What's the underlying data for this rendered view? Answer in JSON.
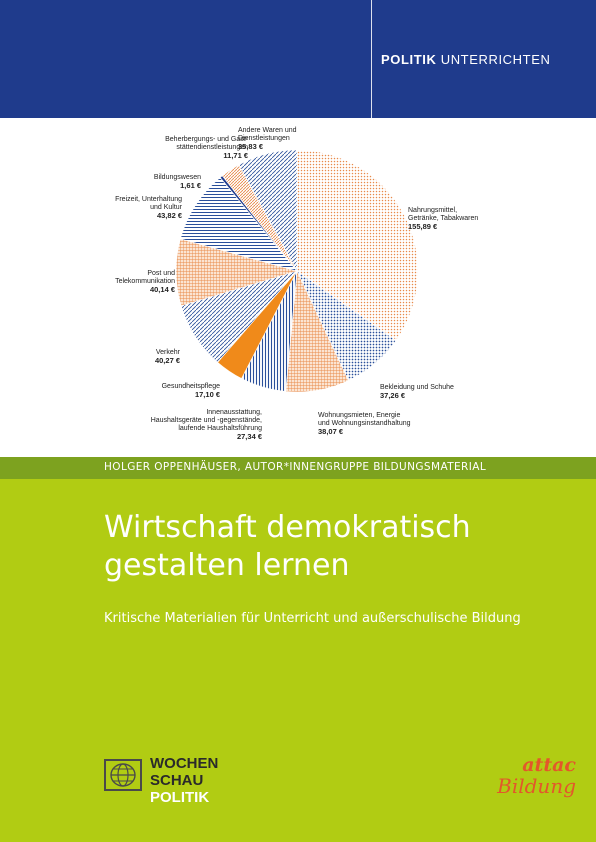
{
  "header": {
    "series_bold": "POLITIK",
    "series_rest": "UNTERRICHTEN",
    "colors": {
      "band": "#1f3b8c",
      "green_dark": "#7da21f",
      "green_main": "#b1cc13"
    }
  },
  "chart_data": {
    "type": "pie",
    "unit": "€",
    "start_angle_deg": 0,
    "direction": "clockwise",
    "slices": [
      {
        "label_lines": [
          "Nahrungsmittel,",
          "Getränke, Tabakwaren"
        ],
        "value_text": "155,89 €",
        "value": 155.89,
        "color": "#e88a4a",
        "pattern": "dots"
      },
      {
        "label_lines": [
          "Bekleidung und Schuhe"
        ],
        "value_text": "37,26 €",
        "value": 37.26,
        "color": "#2a4f9a",
        "pattern": "dots"
      },
      {
        "label_lines": [
          "Wohnungsmieten, Energie",
          "und Wohnungsinstandhaltung"
        ],
        "value_text": "38,07 €",
        "value": 38.07,
        "color": "#e88a4a",
        "pattern": "grid"
      },
      {
        "label_lines": [
          "Innenausstattung,",
          "Haushaltsgeräte und -gegenstände,",
          "laufende Haushaltsführung"
        ],
        "value_text": "27,34 €",
        "value": 27.34,
        "color": "#2a4f9a",
        "pattern": "vlines"
      },
      {
        "label_lines": [
          "Gesundheitspflege"
        ],
        "value_text": "17,10 €",
        "value": 17.1,
        "color": "#f08a1a",
        "pattern": "solid"
      },
      {
        "label_lines": [
          "Verkehr"
        ],
        "value_text": "40,27 €",
        "value": 40.27,
        "color": "#2a4f9a",
        "pattern": "diag"
      },
      {
        "label_lines": [
          "Post und",
          "Telekommunikation"
        ],
        "value_text": "40,14 €",
        "value": 40.14,
        "color": "#e88a4a",
        "pattern": "grid"
      },
      {
        "label_lines": [
          "Freizeit, Unterhaltung",
          "und Kultur"
        ],
        "value_text": "43,82 €",
        "value": 43.82,
        "color": "#2a4f9a",
        "pattern": "hlines"
      },
      {
        "label_lines": [
          "Bildungswesen"
        ],
        "value_text": "1,61 €",
        "value": 1.61,
        "color": "#1f3b8c",
        "pattern": "solid"
      },
      {
        "label_lines": [
          "Beherbergungs- und Gast-",
          "stättendienstleistungen"
        ],
        "value_text": "11,71 €",
        "value": 11.71,
        "color": "#e88a4a",
        "pattern": "diag"
      },
      {
        "label_lines": [
          "Andere Waren und",
          "Dienstleistungen"
        ],
        "value_text": "35,83 €",
        "value": 35.83,
        "color": "#2a4f9a",
        "pattern": "diag"
      }
    ]
  },
  "author": "HOLGER OPPENHÄUSER, AUTOR*INNENGRUPPE BILDUNGSMATERIAL",
  "title_lines": [
    "Wirtschaft demokratisch",
    "gestalten lernen"
  ],
  "subtitle": "Kritische Materialien für Unterricht und außerschulische Bildung",
  "publisher": {
    "line1": "WOCHEN",
    "line2": "SCHAU",
    "line3": "POLITIK",
    "icon": "globe-icon"
  },
  "partner": {
    "line1": "attac",
    "line2": "Bildung"
  }
}
